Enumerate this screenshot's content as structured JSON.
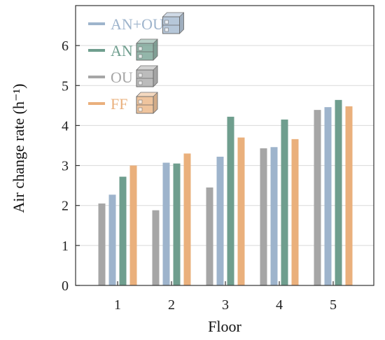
{
  "chart_data": {
    "type": "bar",
    "xlabel": "Floor",
    "ylabel": "Air change rate (h⁻¹)",
    "categories": [
      "1",
      "2",
      "3",
      "4",
      "5"
    ],
    "ylim": [
      0,
      7
    ],
    "yticks": [
      "0",
      "1",
      "2",
      "3",
      "4",
      "5",
      "6"
    ],
    "grid": "horizontal",
    "legend_position": "top-left",
    "series": [
      {
        "name": "OU",
        "color": "#a6a6a6",
        "values": [
          2.05,
          1.88,
          2.45,
          3.43,
          4.39
        ]
      },
      {
        "name": "AN+OU",
        "color": "#9eb4cc",
        "values": [
          2.27,
          3.07,
          3.22,
          3.46,
          4.46
        ]
      },
      {
        "name": "AN",
        "color": "#6f9e8e",
        "values": [
          2.72,
          3.05,
          4.22,
          4.15,
          4.64
        ]
      },
      {
        "name": "FF",
        "color": "#eab07c",
        "values": [
          3.0,
          3.3,
          3.7,
          3.66,
          4.48
        ]
      }
    ],
    "legend": [
      {
        "name": "AN+OU",
        "color": "#9eb4cc",
        "icon": "building-cutaway-icon"
      },
      {
        "name": "AN",
        "color": "#6f9e8e",
        "icon": "building-cutaway-icon"
      },
      {
        "name": "OU",
        "color": "#a6a6a6",
        "icon": "building-cutaway-icon"
      },
      {
        "name": "FF",
        "color": "#eab07c",
        "icon": "building-cutaway-icon"
      }
    ]
  }
}
